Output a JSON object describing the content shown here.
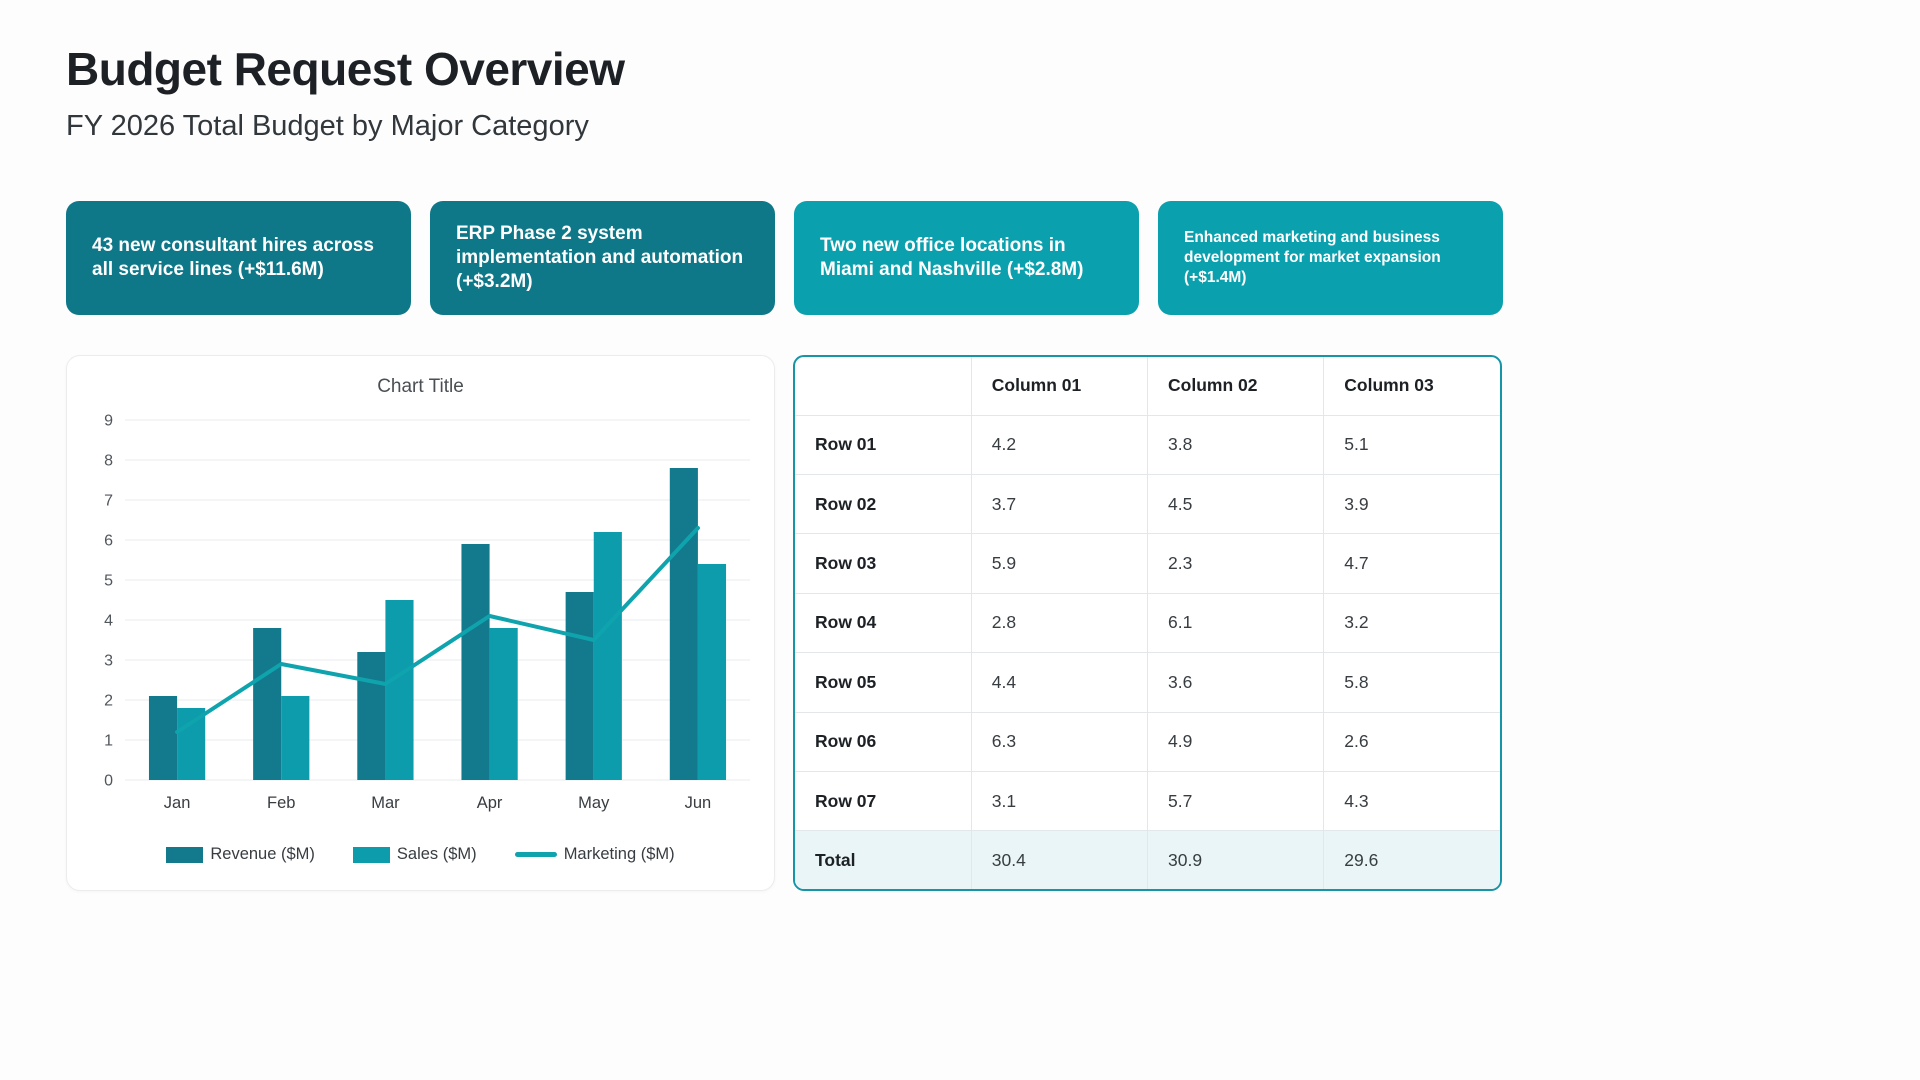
{
  "header": {
    "title": "Budget Request Overview",
    "subtitle": "FY 2026 Total Budget by Major Category"
  },
  "highlight_cards": [
    {
      "text": "43 new consultant hires across all service lines (+$11.6M)",
      "color": "#0e7889",
      "size": "lg"
    },
    {
      "text": "ERP Phase 2 system implementation and automation (+$3.2M)",
      "color": "#0e7889",
      "size": "lg"
    },
    {
      "text": "Two new office locations in Miami and Nashville (+$2.8M)",
      "color": "#0aa0ad",
      "size": "lg"
    },
    {
      "text": "Enhanced marketing and business development for market expansion (+$1.4M)",
      "color": "#0aa0ad",
      "size": "sm"
    }
  ],
  "chart_data": {
    "type": "bar",
    "title": "Chart Title",
    "categories": [
      "Jan",
      "Feb",
      "Mar",
      "Apr",
      "May",
      "Jun"
    ],
    "series": [
      {
        "name": "Revenue ($M)",
        "type": "bar",
        "color": "#13798c",
        "values": [
          2.1,
          3.8,
          3.2,
          5.9,
          4.7,
          7.8
        ]
      },
      {
        "name": "Sales ($M)",
        "type": "bar",
        "color": "#0c9cab",
        "values": [
          1.8,
          2.1,
          4.5,
          3.8,
          6.2,
          5.4
        ]
      },
      {
        "name": "Marketing ($M)",
        "type": "line",
        "color": "#0fa3ae",
        "values": [
          1.2,
          2.9,
          2.4,
          4.1,
          3.5,
          6.3
        ]
      }
    ],
    "xlabel": "",
    "ylabel": "",
    "ylim": [
      0,
      9
    ],
    "ytick_step": 1,
    "grid": true,
    "legend_position": "bottom"
  },
  "table": {
    "columns": [
      "",
      "Column 01",
      "Column 02",
      "Column 03"
    ],
    "rows": [
      {
        "label": "Row 01",
        "values": [
          "4.2",
          "3.8",
          "5.1"
        ],
        "is_total": false
      },
      {
        "label": "Row 02",
        "values": [
          "3.7",
          "4.5",
          "3.9"
        ],
        "is_total": false
      },
      {
        "label": "Row 03",
        "values": [
          "5.9",
          "2.3",
          "4.7"
        ],
        "is_total": false
      },
      {
        "label": "Row 04",
        "values": [
          "2.8",
          "6.1",
          "3.2"
        ],
        "is_total": false
      },
      {
        "label": "Row 05",
        "values": [
          "4.4",
          "3.6",
          "5.8"
        ],
        "is_total": false
      },
      {
        "label": "Row 06",
        "values": [
          "6.3",
          "4.9",
          "2.6"
        ],
        "is_total": false
      },
      {
        "label": "Row 07",
        "values": [
          "3.1",
          "5.7",
          "4.3"
        ],
        "is_total": false
      },
      {
        "label": "Total",
        "values": [
          "30.4",
          "30.9",
          "29.6"
        ],
        "is_total": true
      }
    ]
  },
  "colors": {
    "accent_teal_dark": "#0e7889",
    "accent_teal_light": "#0aa0ad",
    "table_border": "#1695a6",
    "total_row_bg": "#e9f5f7",
    "gridline": "#e9ebed"
  }
}
